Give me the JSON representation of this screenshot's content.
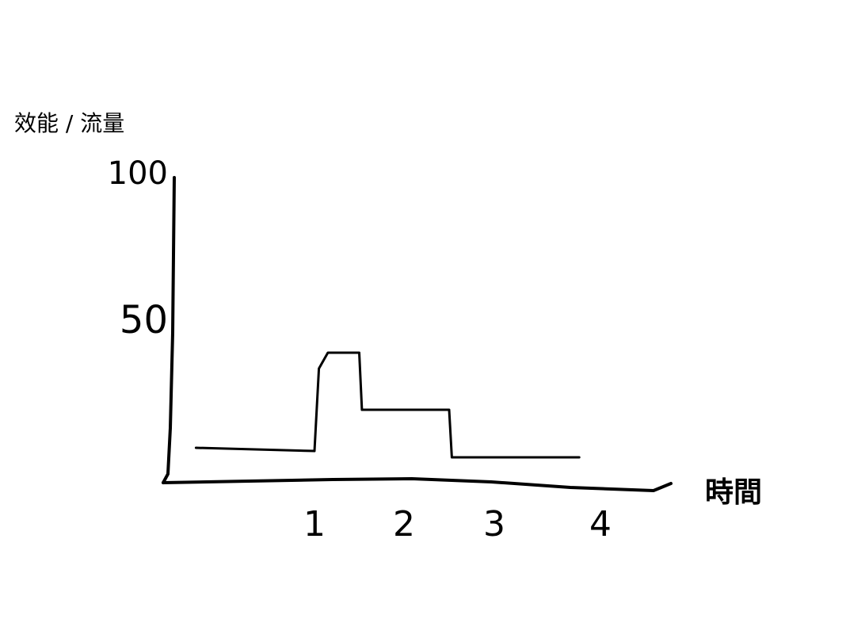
{
  "chart_data": {
    "type": "line",
    "ylabel": "效能 / 流量",
    "xlabel": "時間",
    "ylim": [
      0,
      100
    ],
    "xlim": [
      0,
      4
    ],
    "y_ticks": [
      {
        "value": 50,
        "label": "50"
      },
      {
        "value": 100,
        "label": "100"
      }
    ],
    "x_ticks": [
      {
        "value": 1,
        "label": "1"
      },
      {
        "value": 2,
        "label": "2"
      },
      {
        "value": 3,
        "label": "3"
      },
      {
        "value": 4,
        "label": "4"
      }
    ],
    "series": [
      {
        "x": [
          0.2,
          1.0,
          1.05,
          1.15,
          1.5,
          1.53,
          2.5,
          2.53,
          3.8
        ],
        "y": [
          10,
          9,
          35,
          40,
          40,
          22,
          22,
          7,
          7
        ]
      }
    ],
    "grid": false,
    "color": "#000000"
  }
}
